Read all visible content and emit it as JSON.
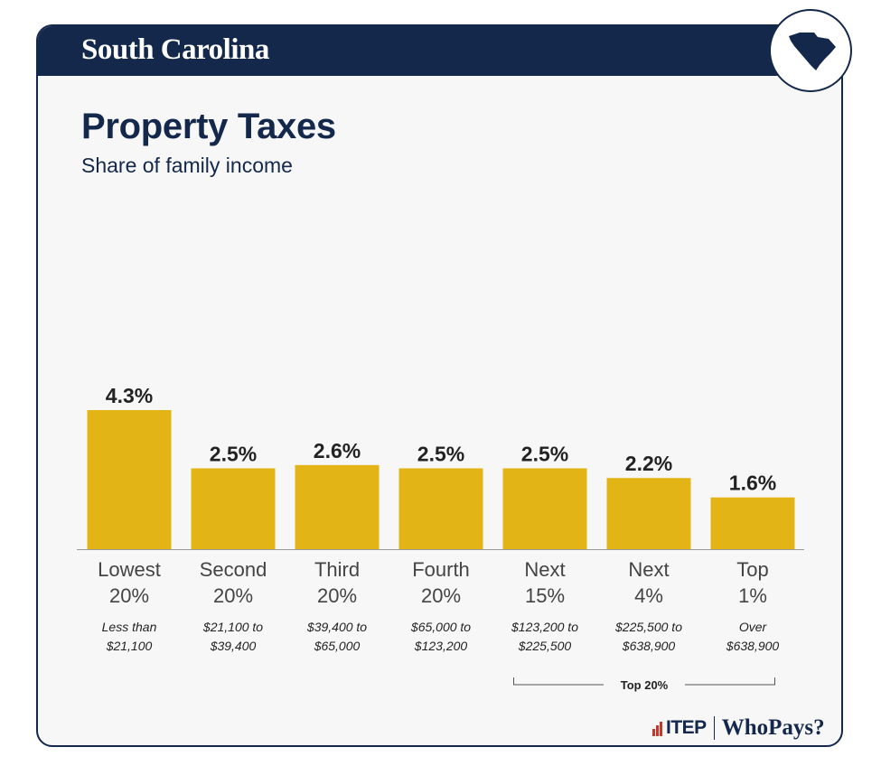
{
  "header": {
    "state_name": "South Carolina"
  },
  "colors": {
    "navy": "#14284b",
    "bar": "#e3b416",
    "axis": "#999999"
  },
  "chart_data": {
    "type": "bar",
    "title": "Property Taxes",
    "subtitle": "Share of family income",
    "unit": "%",
    "categories": [
      {
        "line1": "Lowest",
        "line2": "20%",
        "range1": "Less than",
        "range2": "$21,100"
      },
      {
        "line1": "Second",
        "line2": "20%",
        "range1": "$21,100 to",
        "range2": "$39,400"
      },
      {
        "line1": "Third",
        "line2": "20%",
        "range1": "$39,400 to",
        "range2": "$65,000"
      },
      {
        "line1": "Fourth",
        "line2": "20%",
        "range1": "$65,000 to",
        "range2": "$123,200"
      },
      {
        "line1": "Next",
        "line2": "15%",
        "range1": "$123,200 to",
        "range2": "$225,500"
      },
      {
        "line1": "Next",
        "line2": "4%",
        "range1": "$225,500 to",
        "range2": "$638,900"
      },
      {
        "line1": "Top",
        "line2": "1%",
        "range1": "Over",
        "range2": "$638,900"
      }
    ],
    "values": [
      4.3,
      2.5,
      2.6,
      2.5,
      2.5,
      2.2,
      1.6
    ],
    "value_labels": [
      "4.3%",
      "2.5%",
      "2.6%",
      "2.5%",
      "2.5%",
      "2.2%",
      "1.6%"
    ],
    "group_bracket": {
      "label": "Top 20%",
      "from_index": 4,
      "to_index": 6
    }
  },
  "footer": {
    "itep": "ITEP",
    "whopays": "WhoPays?"
  }
}
